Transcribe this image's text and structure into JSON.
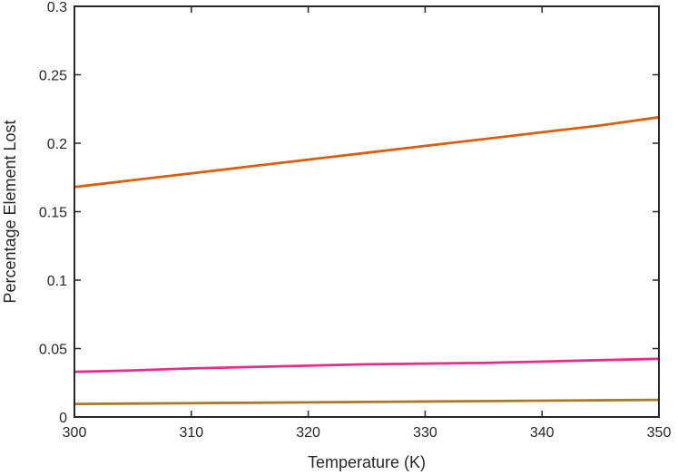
{
  "chart_data": {
    "type": "line",
    "title": "",
    "xlabel": "Temperature (K)",
    "ylabel": "Percentage Element Lost",
    "xlim": [
      300,
      350
    ],
    "ylim": [
      0,
      0.3
    ],
    "grid": false,
    "x_ticks": [
      300,
      310,
      320,
      330,
      340,
      350
    ],
    "x_tick_labels": [
      "300",
      "310",
      "320",
      "330",
      "340",
      "350"
    ],
    "y_ticks": [
      0,
      0.05,
      0.1,
      0.15,
      0.2,
      0.25,
      0.3
    ],
    "y_tick_labels": [
      "0",
      "0.05",
      "0.1",
      "0.15",
      "0.2",
      "0.25",
      "0.3"
    ],
    "series": [
      {
        "color": "#D95F0E",
        "x": [
          300,
          305,
          310,
          315,
          320,
          325,
          330,
          335,
          340,
          345,
          350
        ],
        "y": [
          0.168,
          0.173,
          0.178,
          0.183,
          0.188,
          0.193,
          0.198,
          0.203,
          0.208,
          0.213,
          0.219
        ]
      },
      {
        "color": "#E0308A",
        "x": [
          300,
          305,
          310,
          315,
          320,
          325,
          330,
          335,
          340,
          345,
          350
        ],
        "y": [
          0.033,
          0.034,
          0.0355,
          0.0365,
          0.0375,
          0.0385,
          0.039,
          0.0395,
          0.0405,
          0.0415,
          0.0425
        ]
      },
      {
        "color": "#A87A2E",
        "x": [
          300,
          305,
          310,
          315,
          320,
          325,
          330,
          335,
          340,
          345,
          350
        ],
        "y": [
          0.0095,
          0.0098,
          0.0101,
          0.0104,
          0.0107,
          0.011,
          0.0113,
          0.0116,
          0.0119,
          0.0122,
          0.0125
        ]
      }
    ]
  }
}
